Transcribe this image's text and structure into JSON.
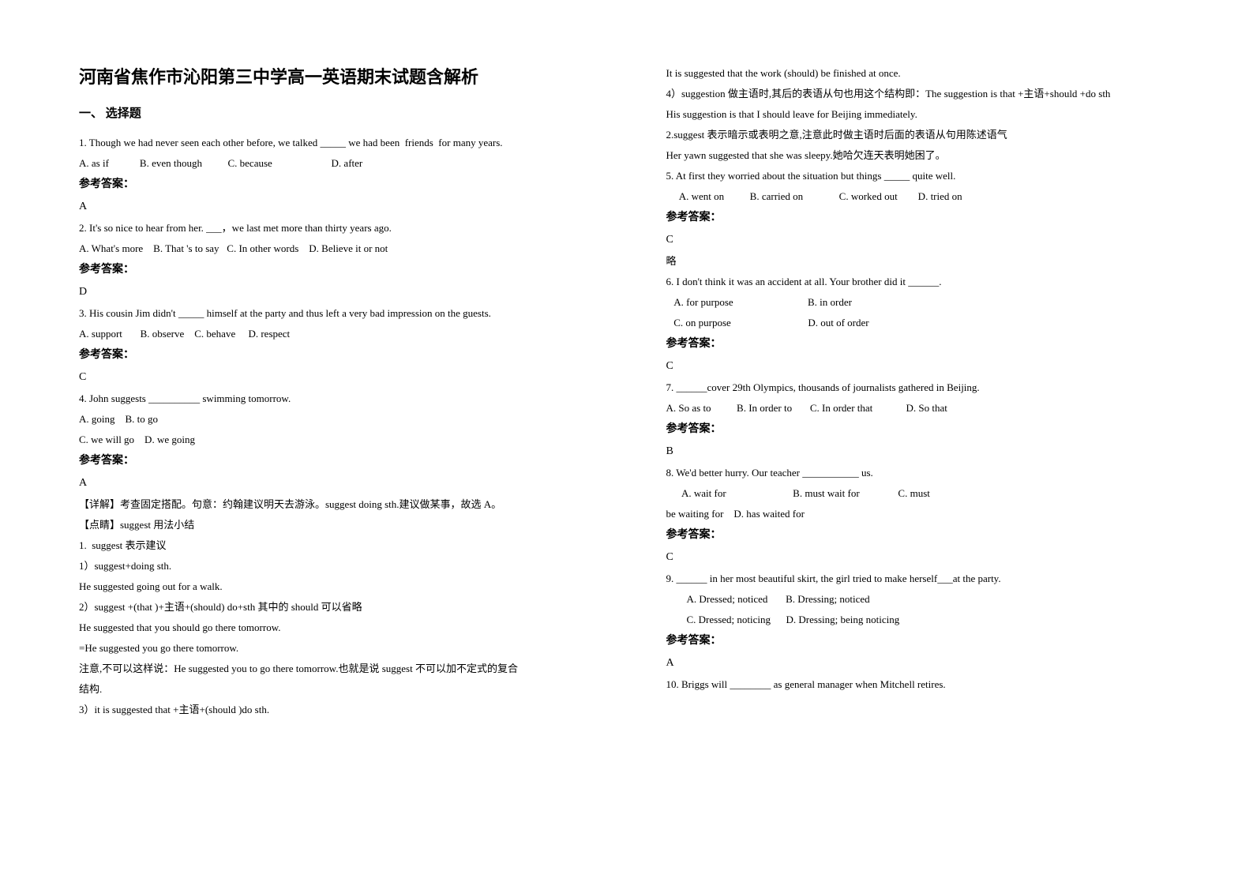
{
  "title": "河南省焦作市沁阳第三中学高一英语期末试题含解析",
  "section_header": "一、 选择题",
  "left_column": [
    {
      "type": "line",
      "text": "1. Though we had never seen each other before, we talked _____ we had been  friends  for many years."
    },
    {
      "type": "line",
      "text": "A. as if            B. even though          C. because                       D. after"
    },
    {
      "type": "answer-label",
      "text": "参考答案："
    },
    {
      "type": "answer",
      "text": "A"
    },
    {
      "type": "line",
      "text": "2. It's so nice to hear from her. ___，we last met more than thirty years ago."
    },
    {
      "type": "line",
      "text": "A. What's more    B. That 's to say   C. In other words    D. Believe it or not"
    },
    {
      "type": "answer-label",
      "text": "参考答案："
    },
    {
      "type": "answer",
      "text": "D"
    },
    {
      "type": "line",
      "text": "3. His cousin Jim didn't _____ himself at the party and thus left a very bad impression on the guests."
    },
    {
      "type": "line",
      "text": "A. support       B. observe    C. behave     D. respect"
    },
    {
      "type": "answer-label",
      "text": "参考答案："
    },
    {
      "type": "answer",
      "text": "C"
    },
    {
      "type": "line",
      "text": "4. John suggests __________ swimming tomorrow."
    },
    {
      "type": "line",
      "text": "A. going    B. to go"
    },
    {
      "type": "line",
      "text": "C. we will go    D. we going"
    },
    {
      "type": "answer-label",
      "text": "参考答案："
    },
    {
      "type": "answer",
      "text": "A"
    },
    {
      "type": "line",
      "text": "【详解】考查固定搭配。句意：约翰建议明天去游泳。suggest doing sth.建议做某事，故选 A。"
    },
    {
      "type": "line",
      "text": "【点睛】suggest 用法小结"
    },
    {
      "type": "line",
      "text": "1.  suggest 表示建议"
    },
    {
      "type": "line",
      "text": "1）suggest+doing sth."
    },
    {
      "type": "line",
      "text": "He suggested going out for a walk."
    },
    {
      "type": "line",
      "text": "2）suggest +(that )+主语+(should) do+sth 其中的 should 可以省略"
    },
    {
      "type": "line",
      "text": "He suggested that you should go there tomorrow."
    },
    {
      "type": "line",
      "text": "=He suggested you go there tomorrow."
    },
    {
      "type": "line",
      "text": "注意,不可以这样说：He suggested you to go there tomorrow.也就是说 suggest 不可以加不定式的复合"
    },
    {
      "type": "line",
      "text": "结构."
    },
    {
      "type": "line",
      "text": "3）it is suggested that +主语+(should )do sth."
    }
  ],
  "right_column": [
    {
      "type": "line",
      "text": "It is suggested that the work (should) be finished at once."
    },
    {
      "type": "line",
      "text": "4）suggestion 做主语时,其后的表语从句也用这个结构即：The suggestion is that +主语+should +do sth"
    },
    {
      "type": "line",
      "text": "His suggestion is that I should leave for Beijing immediately."
    },
    {
      "type": "line",
      "text": "2.suggest 表示暗示或表明之意,注意此时做主语时后面的表语从句用陈述语气"
    },
    {
      "type": "line",
      "text": "Her yawn suggested that she was sleepy.她哈欠连天表明她困了。"
    },
    {
      "type": "line",
      "text": "5. At first they worried about the situation but things _____ quite well."
    },
    {
      "type": "line",
      "text": "     A. went on          B. carried on              C. worked out        D. tried on"
    },
    {
      "type": "answer-label",
      "text": "参考答案："
    },
    {
      "type": "answer",
      "text": "C"
    },
    {
      "type": "line",
      "text": "略"
    },
    {
      "type": "line",
      "text": "6. I don't think it was an accident at all. Your brother did it ______."
    },
    {
      "type": "line",
      "text": "   A. for purpose                             B. in order"
    },
    {
      "type": "line",
      "text": "   C. on purpose                              D. out of order"
    },
    {
      "type": "answer-label",
      "text": "参考答案："
    },
    {
      "type": "answer",
      "text": "C"
    },
    {
      "type": "line",
      "text": "7. ______cover 29th Olympics, thousands of journalists gathered in Beijing."
    },
    {
      "type": "line",
      "text": "A. So as to          B. In order to       C. In order that             D. So that"
    },
    {
      "type": "answer-label",
      "text": "参考答案："
    },
    {
      "type": "answer",
      "text": "B"
    },
    {
      "type": "line",
      "text": "8. We'd better hurry. Our teacher ___________ us."
    },
    {
      "type": "line",
      "text": "      A. wait for                          B. must wait for               C. must "
    },
    {
      "type": "line",
      "text": "be waiting for    D. has waited for"
    },
    {
      "type": "answer-label",
      "text": "参考答案："
    },
    {
      "type": "answer",
      "text": "C"
    },
    {
      "type": "line",
      "text": "9. ______ in her most beautiful skirt, the girl tried to make herself___at the party."
    },
    {
      "type": "line",
      "text": "        A. Dressed; noticed       B. Dressing; noticed"
    },
    {
      "type": "line",
      "text": "        C. Dressed; noticing      D. Dressing; being noticing"
    },
    {
      "type": "answer-label",
      "text": "参考答案："
    },
    {
      "type": "answer",
      "text": "A"
    },
    {
      "type": "line",
      "text": "10. Briggs will ________ as general manager when Mitchell retires."
    }
  ]
}
